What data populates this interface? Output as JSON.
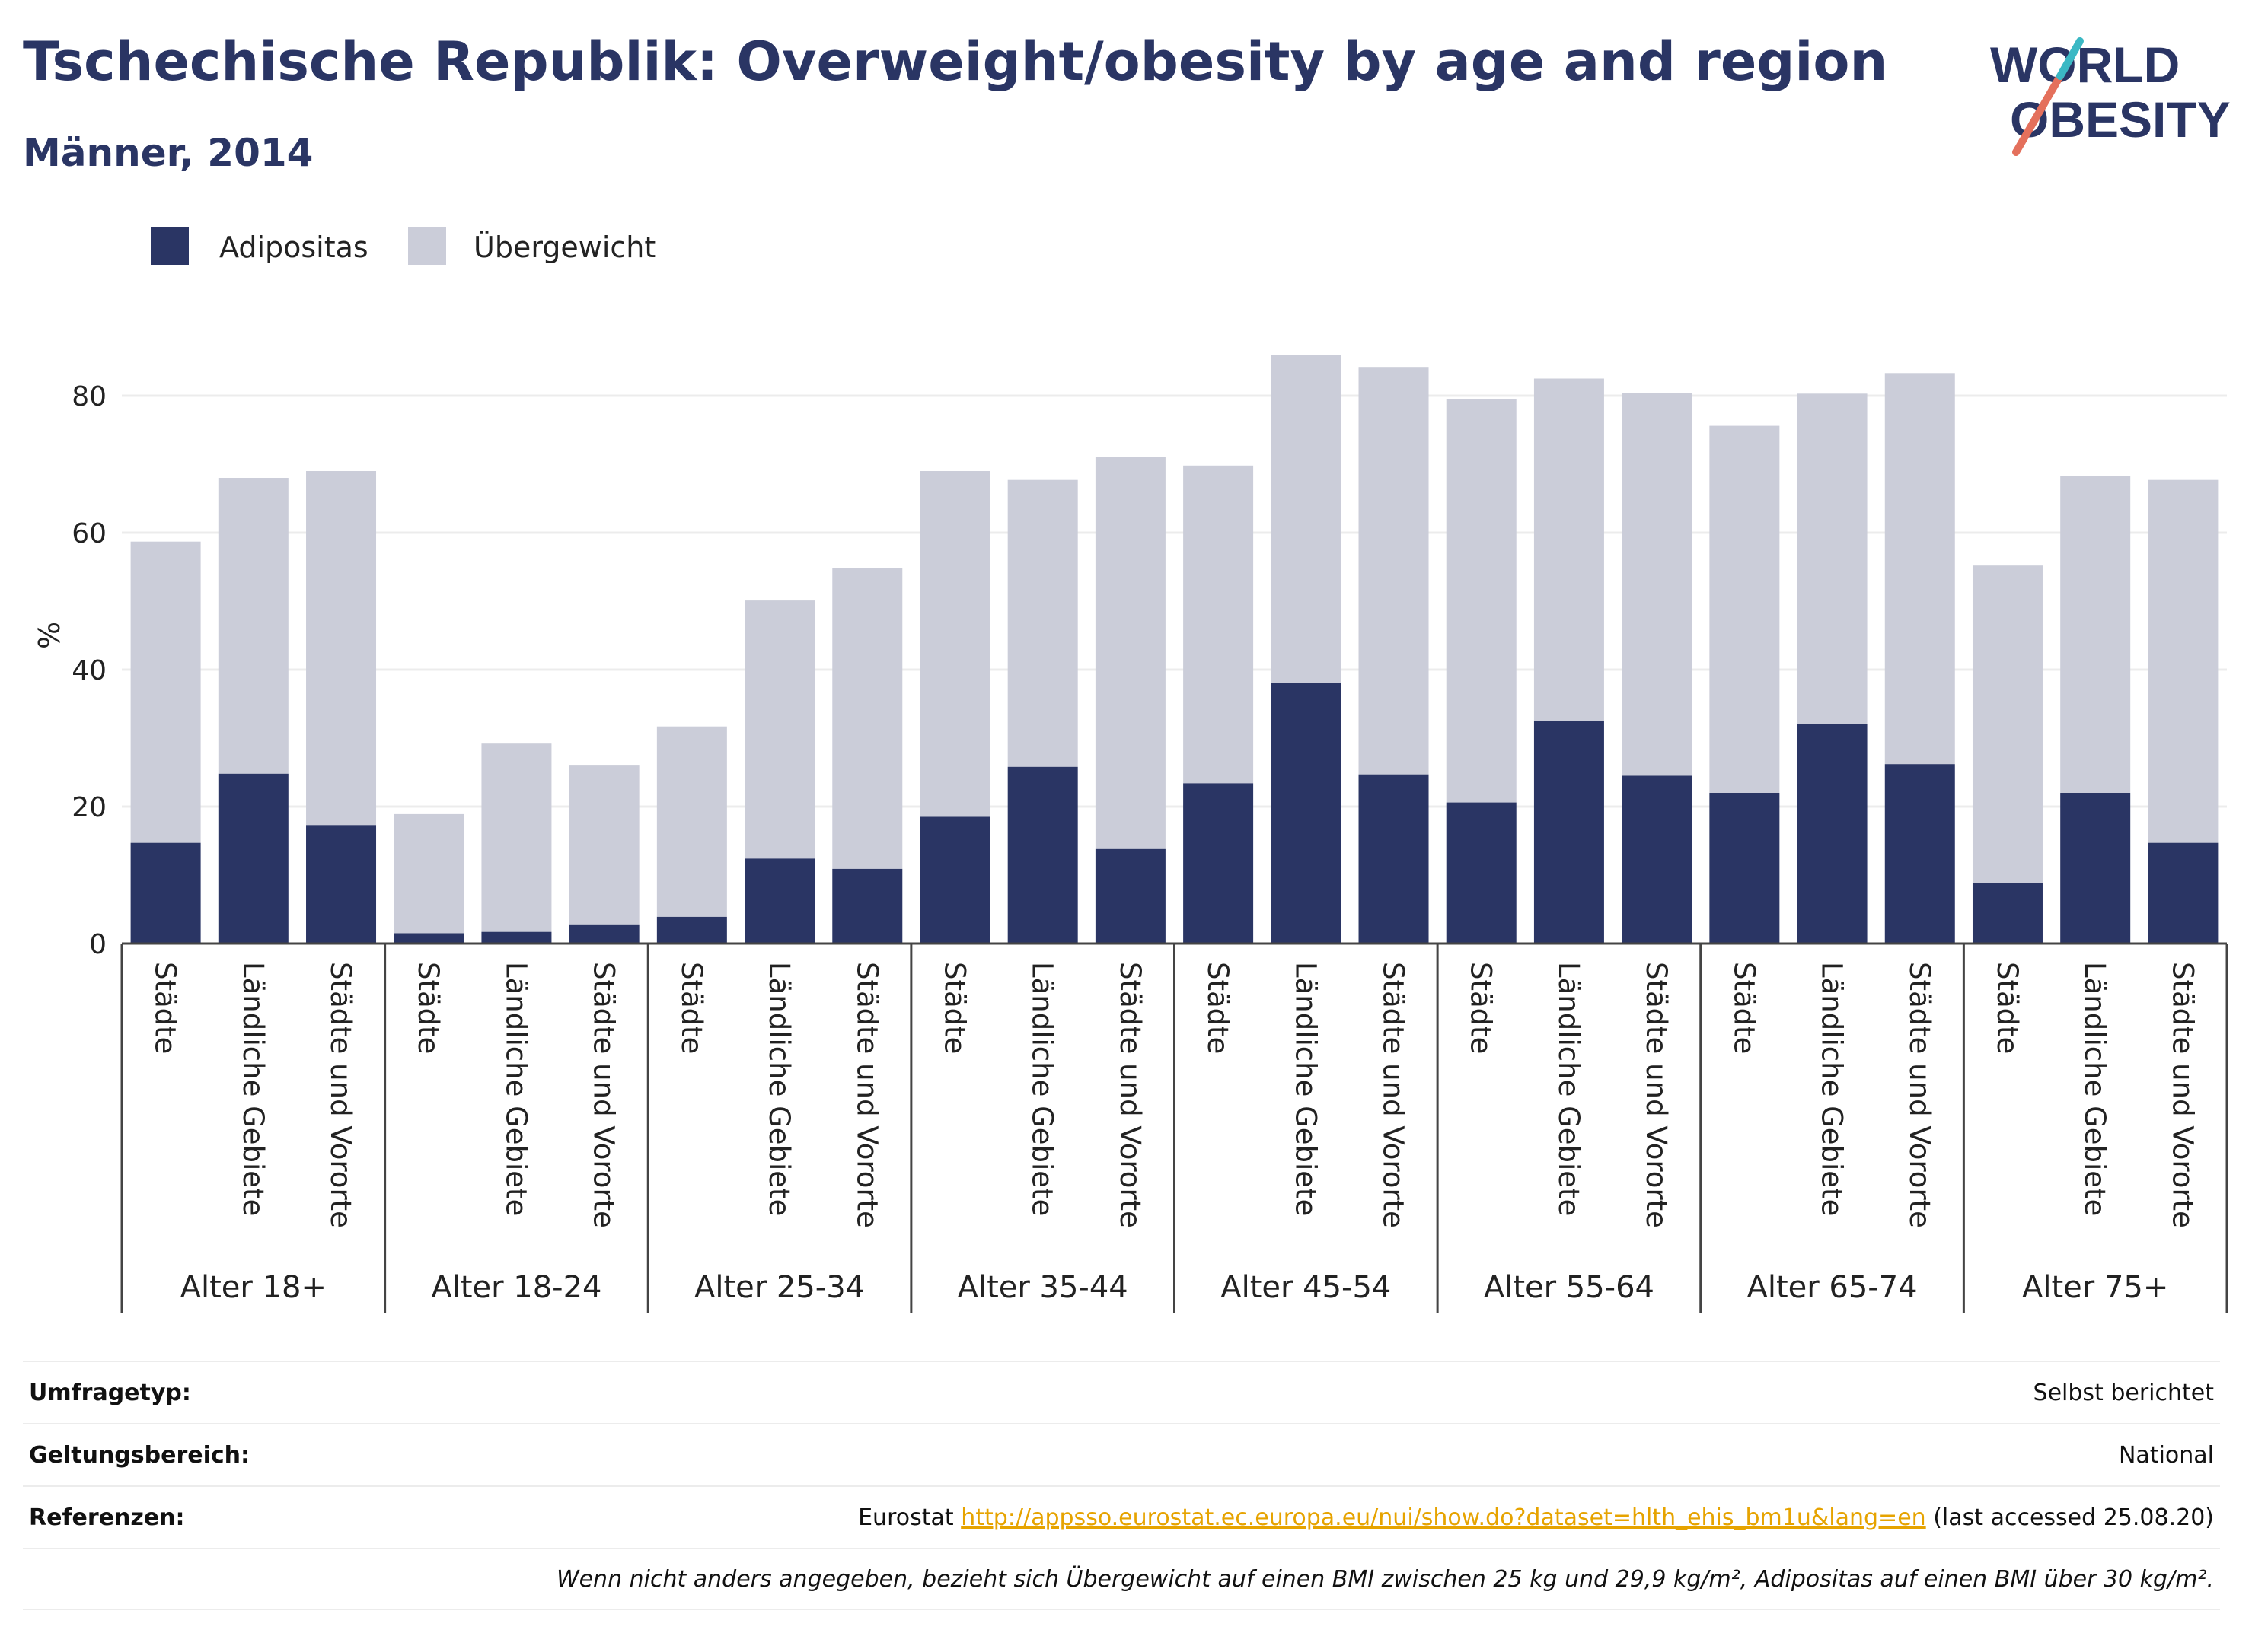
{
  "header": {
    "title": "Tschechische Republik: Overweight/obesity by age and region",
    "subtitle": "Männer, 2014"
  },
  "logo": {
    "line1": "WORLD",
    "line2": "OBESITY",
    "accent": "#e4705c",
    "accent2": "#3bb8c4",
    "color": "#2a3564"
  },
  "colors": {
    "obesity": "#2a3564",
    "overweight": "#cbcdd9"
  },
  "chart_data": {
    "type": "bar",
    "stacked": true,
    "ylabel": "%",
    "ylim": [
      0,
      90
    ],
    "yticks": [
      0,
      20,
      40,
      60,
      80
    ],
    "grid": true,
    "legend_position": "top-left",
    "legend": [
      "Adipositas",
      "Übergewicht"
    ],
    "groups": [
      {
        "label": "Alter 18+",
        "categories": [
          "Städte",
          "Ländliche Gebiete",
          "Städte und Vororte"
        ],
        "obesity": [
          14.7,
          24.8,
          17.3
        ],
        "total": [
          58.7,
          68.0,
          69.0
        ]
      },
      {
        "label": "Alter 18-24",
        "categories": [
          "Städte",
          "Ländliche Gebiete",
          "Städte und Vororte"
        ],
        "obesity": [
          1.5,
          1.7,
          2.8
        ],
        "total": [
          18.9,
          29.2,
          26.1
        ]
      },
      {
        "label": "Alter 25-34",
        "categories": [
          "Städte",
          "Ländliche Gebiete",
          "Städte und Vororte"
        ],
        "obesity": [
          3.9,
          12.4,
          10.9
        ],
        "total": [
          31.7,
          50.1,
          54.8
        ]
      },
      {
        "label": "Alter 35-44",
        "categories": [
          "Städte",
          "Ländliche Gebiete",
          "Städte und Vororte"
        ],
        "obesity": [
          18.5,
          25.8,
          13.8
        ],
        "total": [
          69.0,
          67.7,
          71.1
        ]
      },
      {
        "label": "Alter 45-54",
        "categories": [
          "Städte",
          "Ländliche Gebiete",
          "Städte und Vororte"
        ],
        "obesity": [
          23.4,
          38.0,
          24.7
        ],
        "total": [
          69.8,
          85.9,
          84.2
        ]
      },
      {
        "label": "Alter 55-64",
        "categories": [
          "Städte",
          "Ländliche Gebiete",
          "Städte und Vororte"
        ],
        "obesity": [
          20.6,
          32.5,
          24.5
        ],
        "total": [
          79.5,
          82.5,
          80.4
        ]
      },
      {
        "label": "Alter 65-74",
        "categories": [
          "Städte",
          "Ländliche Gebiete",
          "Städte und Vororte"
        ],
        "obesity": [
          22.0,
          32.0,
          26.2
        ],
        "total": [
          75.6,
          80.3,
          83.3
        ]
      },
      {
        "label": "Alter 75+",
        "categories": [
          "Städte",
          "Ländliche Gebiete",
          "Städte und Vororte"
        ],
        "obesity": [
          8.8,
          22.0,
          14.7
        ],
        "total": [
          55.2,
          68.3,
          67.7
        ]
      }
    ]
  },
  "info": {
    "survey_label": "Umfragetyp:",
    "survey_value": "Selbst berichtet",
    "scope_label": "Geltungsbereich:",
    "scope_value": "National",
    "ref_label": "Referenzen:",
    "ref_prefix": "Eurostat",
    "ref_link": "http://appsso.eurostat.ec.europa.eu/nui/show.do?dataset=hlth_ehis_bm1u&lang=en",
    "ref_suffix": "(last accessed 25.08.20)",
    "note": "Wenn nicht anders angegeben, bezieht sich Übergewicht auf einen BMI zwischen 25 kg und 29,9 kg/m², Adipositas auf einen BMI über 30 kg/m²."
  }
}
